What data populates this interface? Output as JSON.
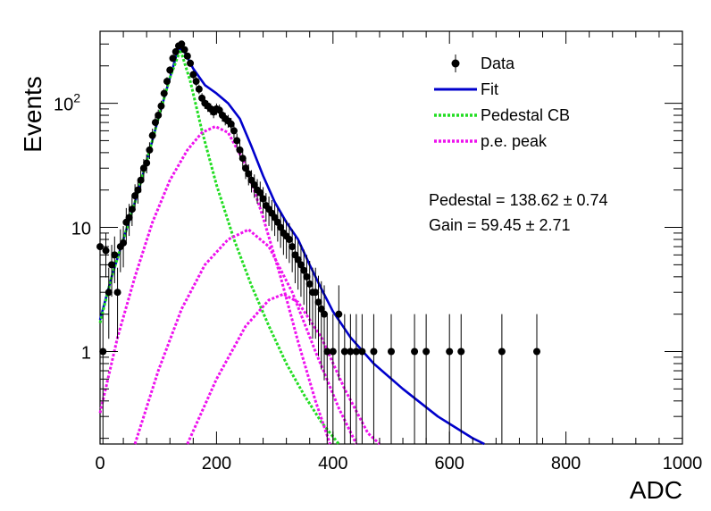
{
  "chart_data": {
    "type": "scatter",
    "xlabel": "ADC",
    "ylabel": "Events",
    "xlim": [
      0,
      1000
    ],
    "ylim": [
      0.18,
      380
    ],
    "y_scale": "log",
    "x_ticks": [
      0,
      200,
      400,
      600,
      800,
      1000
    ],
    "y_ticks": [
      {
        "value": 1,
        "label": "1"
      },
      {
        "value": 10,
        "label": "10"
      },
      {
        "value": 100,
        "label": "10",
        "sup": "2"
      }
    ],
    "grid": false,
    "legend": {
      "placement": "top-right",
      "entries": [
        {
          "label": "Data",
          "style": "marker",
          "color": "#000000"
        },
        {
          "label": "Fit",
          "style": "line",
          "color": "#0000cc"
        },
        {
          "label": "Pedestal CB",
          "style": "dotted",
          "color": "#22dd22"
        },
        {
          "label": "p.e. peak",
          "style": "dotted",
          "color": "#ee11ee"
        }
      ]
    },
    "annotations": [
      {
        "text": "Pedestal = 138.62 ± 0.74"
      },
      {
        "text": "Gain = 59.45 ± 2.71"
      }
    ],
    "series": [
      {
        "name": "Data",
        "kind": "points",
        "color": "#000000",
        "points": [
          [
            0,
            7
          ],
          [
            5,
            1
          ],
          [
            10,
            6.5
          ],
          [
            15,
            3
          ],
          [
            20,
            5
          ],
          [
            25,
            6
          ],
          [
            30,
            3
          ],
          [
            35,
            7
          ],
          [
            40,
            7.5
          ],
          [
            45,
            11
          ],
          [
            50,
            12
          ],
          [
            55,
            14
          ],
          [
            60,
            18
          ],
          [
            65,
            20
          ],
          [
            70,
            24
          ],
          [
            75,
            30
          ],
          [
            80,
            33
          ],
          [
            85,
            42
          ],
          [
            90,
            55
          ],
          [
            95,
            70
          ],
          [
            100,
            80
          ],
          [
            105,
            95
          ],
          [
            110,
            120
          ],
          [
            115,
            150
          ],
          [
            120,
            185
          ],
          [
            125,
            230
          ],
          [
            130,
            260
          ],
          [
            135,
            290
          ],
          [
            140,
            300
          ],
          [
            145,
            270
          ],
          [
            150,
            240
          ],
          [
            155,
            210
          ],
          [
            160,
            170
          ],
          [
            165,
            150
          ],
          [
            170,
            130
          ],
          [
            175,
            110
          ],
          [
            180,
            100
          ],
          [
            185,
            95
          ],
          [
            190,
            90
          ],
          [
            195,
            85
          ],
          [
            200,
            90
          ],
          [
            205,
            88
          ],
          [
            210,
            80
          ],
          [
            215,
            75
          ],
          [
            220,
            72
          ],
          [
            225,
            68
          ],
          [
            230,
            60
          ],
          [
            235,
            50
          ],
          [
            240,
            42
          ],
          [
            245,
            36
          ],
          [
            250,
            30
          ],
          [
            255,
            27
          ],
          [
            260,
            24
          ],
          [
            265,
            22
          ],
          [
            270,
            20
          ],
          [
            275,
            19
          ],
          [
            280,
            17
          ],
          [
            285,
            15
          ],
          [
            290,
            14
          ],
          [
            295,
            13
          ],
          [
            300,
            12
          ],
          [
            305,
            11
          ],
          [
            310,
            10
          ],
          [
            315,
            9
          ],
          [
            320,
            8.5
          ],
          [
            325,
            8
          ],
          [
            330,
            7
          ],
          [
            335,
            6
          ],
          [
            340,
            5.5
          ],
          [
            345,
            5
          ],
          [
            350,
            4.5
          ],
          [
            355,
            4
          ],
          [
            360,
            3.5
          ],
          [
            365,
            3
          ],
          [
            370,
            3
          ],
          [
            375,
            2.5
          ],
          [
            380,
            2.2
          ],
          [
            385,
            2
          ],
          [
            390,
            1
          ],
          [
            400,
            1
          ],
          [
            410,
            2
          ],
          [
            420,
            1
          ],
          [
            430,
            1
          ],
          [
            440,
            1
          ],
          [
            450,
            1
          ],
          [
            470,
            1
          ],
          [
            500,
            1
          ],
          [
            540,
            1
          ],
          [
            560,
            1
          ],
          [
            600,
            1
          ],
          [
            620,
            1
          ],
          [
            690,
            1
          ],
          [
            750,
            1
          ]
        ]
      },
      {
        "name": "Fit",
        "kind": "line",
        "color": "#0000cc",
        "points": [
          [
            0,
            1.8
          ],
          [
            20,
            4
          ],
          [
            40,
            8
          ],
          [
            60,
            16
          ],
          [
            80,
            34
          ],
          [
            100,
            75
          ],
          [
            120,
            160
          ],
          [
            135,
            280
          ],
          [
            145,
            260
          ],
          [
            160,
            190
          ],
          [
            180,
            140
          ],
          [
            200,
            120
          ],
          [
            220,
            100
          ],
          [
            240,
            75
          ],
          [
            260,
            45
          ],
          [
            280,
            26
          ],
          [
            300,
            16
          ],
          [
            320,
            11
          ],
          [
            340,
            8
          ],
          [
            360,
            5
          ],
          [
            380,
            3.2
          ],
          [
            400,
            2.1
          ],
          [
            430,
            1.3
          ],
          [
            470,
            0.8
          ],
          [
            520,
            0.5
          ],
          [
            580,
            0.3
          ],
          [
            640,
            0.2
          ],
          [
            660,
            0.18
          ]
        ]
      },
      {
        "name": "Pedestal CB",
        "kind": "dotted",
        "color": "#22dd22",
        "points": [
          [
            0,
            1.7
          ],
          [
            20,
            4
          ],
          [
            40,
            8
          ],
          [
            60,
            16
          ],
          [
            80,
            34
          ],
          [
            100,
            75
          ],
          [
            120,
            160
          ],
          [
            138,
            270
          ],
          [
            155,
            150
          ],
          [
            175,
            60
          ],
          [
            200,
            22
          ],
          [
            230,
            8
          ],
          [
            260,
            3.4
          ],
          [
            290,
            1.6
          ],
          [
            320,
            0.8
          ],
          [
            350,
            0.45
          ],
          [
            380,
            0.27
          ],
          [
            410,
            0.18
          ]
        ]
      },
      {
        "name": "p.e. peak",
        "kind": "dotted",
        "color": "#ee11ee",
        "points": [
          [
            0,
            0.32
          ],
          [
            30,
            1.3
          ],
          [
            60,
            4
          ],
          [
            90,
            11
          ],
          [
            120,
            24
          ],
          [
            150,
            42
          ],
          [
            175,
            58
          ],
          [
            198,
            65
          ],
          [
            220,
            58
          ],
          [
            250,
            32
          ],
          [
            280,
            12
          ],
          [
            310,
            4
          ],
          [
            340,
            1.2
          ],
          [
            370,
            0.4
          ],
          [
            395,
            0.18
          ]
        ]
      },
      {
        "name": "p.e. peak",
        "kind": "dotted",
        "color": "#ee11ee",
        "points": [
          [
            60,
            0.18
          ],
          [
            100,
            0.7
          ],
          [
            140,
            2.2
          ],
          [
            180,
            5
          ],
          [
            220,
            8
          ],
          [
            255,
            9.6
          ],
          [
            290,
            7
          ],
          [
            330,
            3
          ],
          [
            370,
            1
          ],
          [
            410,
            0.35
          ],
          [
            440,
            0.18
          ]
        ]
      },
      {
        "name": "p.e. peak",
        "kind": "dotted",
        "color": "#ee11ee",
        "points": [
          [
            150,
            0.18
          ],
          [
            200,
            0.6
          ],
          [
            250,
            1.6
          ],
          [
            290,
            2.6
          ],
          [
            315,
            2.9
          ],
          [
            340,
            2.5
          ],
          [
            380,
            1.3
          ],
          [
            420,
            0.5
          ],
          [
            460,
            0.22
          ],
          [
            480,
            0.18
          ]
        ]
      }
    ]
  }
}
